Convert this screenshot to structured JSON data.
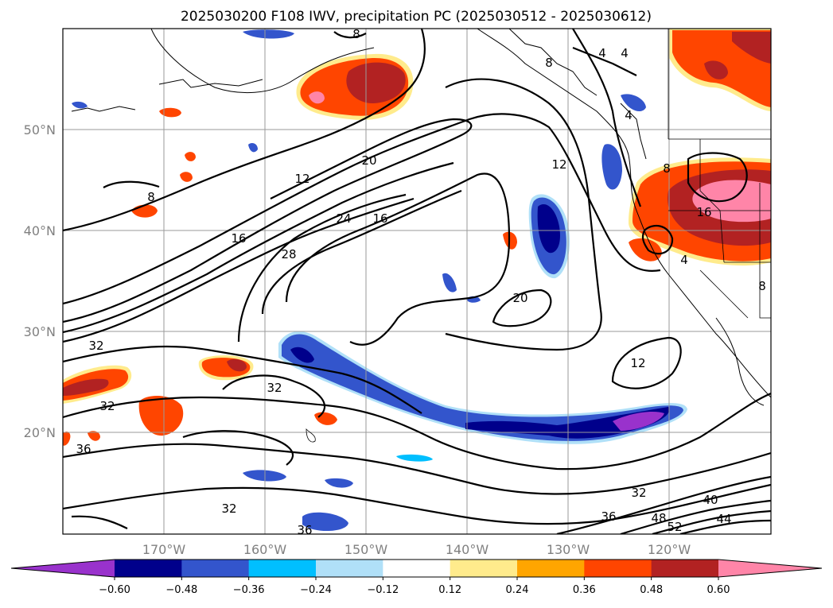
{
  "chart_data": {
    "type": "contour-map",
    "title": "2025030200 F108 IWV, precipitation PC (2025030512 - 2025030612)",
    "lat_ticks": [
      "50°N",
      "40°N",
      "30°N",
      "20°N"
    ],
    "lon_ticks": [
      "170°W",
      "160°W",
      "150°W",
      "140°W",
      "130°W",
      "120°W"
    ],
    "lat_range": [
      10,
      60
    ],
    "lon_range": [
      -180,
      -110
    ],
    "grid": true,
    "colorbar": {
      "orientation": "horizontal",
      "extend": "both",
      "levels": [
        -0.6,
        -0.48,
        -0.36,
        -0.24,
        -0.12,
        0.12,
        0.24,
        0.36,
        0.48,
        0.6
      ],
      "tick_labels": [
        "−0.60",
        "−0.48",
        "−0.36",
        "−0.24",
        "−0.12",
        "0.12",
        "0.24",
        "0.36",
        "0.48",
        "0.60"
      ],
      "colors": [
        "#9932cc",
        "#00008b",
        "#3355cc",
        "#00bfff",
        "#b0e0f8",
        "#ffffff",
        "#ffeb8c",
        "#ffa500",
        "#ff4500",
        "#b22222",
        "#ff85a8"
      ]
    },
    "contour_field": "IWV",
    "contour_labels": [
      {
        "text": "8"
      },
      {
        "text": "4"
      },
      {
        "text": "4"
      },
      {
        "text": "4"
      },
      {
        "text": "8"
      },
      {
        "text": "8"
      },
      {
        "text": "8"
      },
      {
        "text": "16"
      },
      {
        "text": "4"
      },
      {
        "text": "8"
      },
      {
        "text": "12"
      },
      {
        "text": "20"
      },
      {
        "text": "12"
      },
      {
        "text": "16"
      },
      {
        "text": "24"
      },
      {
        "text": "16"
      },
      {
        "text": "28"
      },
      {
        "text": "20"
      },
      {
        "text": "32"
      },
      {
        "text": "32"
      },
      {
        "text": "32"
      },
      {
        "text": "36"
      },
      {
        "text": "12"
      },
      {
        "text": "32"
      },
      {
        "text": "40"
      },
      {
        "text": "36"
      },
      {
        "text": "48"
      },
      {
        "text": "44"
      },
      {
        "text": "52"
      },
      {
        "text": "32"
      },
      {
        "text": "36"
      }
    ]
  }
}
